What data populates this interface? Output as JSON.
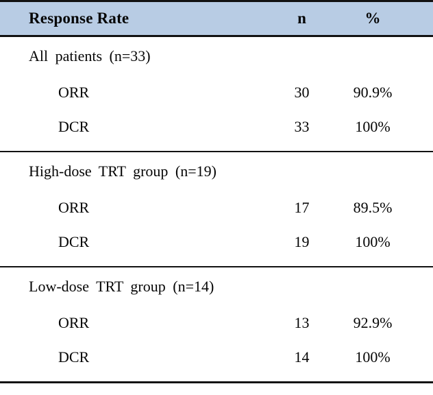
{
  "table": {
    "header": {
      "label": "Response Rate",
      "n": "n",
      "pct": "%"
    },
    "colors": {
      "header_bg": "#b8cce4",
      "border": "#111111",
      "text": "#050505"
    },
    "sections": [
      {
        "title": "All patients (n=33)",
        "rows": [
          {
            "label": "ORR",
            "n": "30",
            "pct": "90.9%"
          },
          {
            "label": "DCR",
            "n": "33",
            "pct": "100%"
          }
        ]
      },
      {
        "title": "High-dose TRT group (n=19)",
        "rows": [
          {
            "label": "ORR",
            "n": "17",
            "pct": "89.5%"
          },
          {
            "label": "DCR",
            "n": "19",
            "pct": "100%"
          }
        ]
      },
      {
        "title": "Low-dose TRT group (n=14)",
        "rows": [
          {
            "label": "ORR",
            "n": "13",
            "pct": "92.9%"
          },
          {
            "label": "DCR",
            "n": "14",
            "pct": "100%"
          }
        ]
      }
    ]
  }
}
